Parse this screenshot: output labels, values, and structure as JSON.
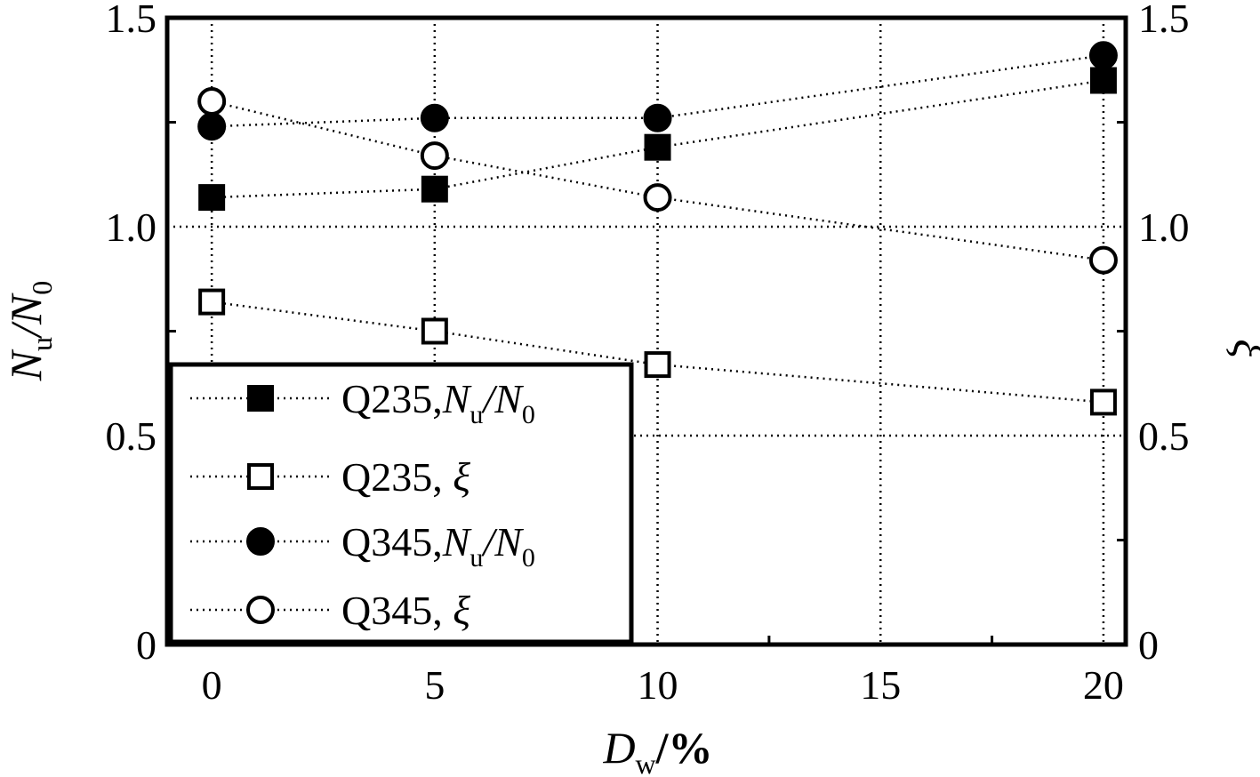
{
  "chart_data": {
    "type": "scatter",
    "x": [
      0,
      5,
      10,
      20
    ],
    "xlim": [
      -1,
      20.5
    ],
    "ylim": [
      0,
      1.5
    ],
    "y2lim": [
      0,
      1.5
    ],
    "xticks": [
      "0",
      "5",
      "10",
      "15",
      "20"
    ],
    "xtick_values": [
      0,
      5,
      10,
      15,
      20
    ],
    "yticks": [
      "0",
      "0.5",
      "1.0",
      "1.5"
    ],
    "ytick_values": [
      0,
      0.5,
      1.0,
      1.5
    ],
    "y2ticks": [
      "0",
      "0.5",
      "1.0",
      "1.5"
    ],
    "xlabel": {
      "main": "D",
      "sub": "w",
      "suffix": "/%"
    },
    "ylabel": {
      "main": "N",
      "sub": "u",
      "mid": "/N",
      "sub2": "0"
    },
    "y2label": "ξ",
    "grid": true,
    "legend_position": "bottom-left",
    "series": [
      {
        "name": "Q235,Nu/N0",
        "legend": {
          "prefix": "Q235,",
          "main": "N",
          "sub": "u",
          "mid": "/N",
          "sub2": "0"
        },
        "marker": "square",
        "filled": true,
        "axis": "left",
        "values": [
          1.07,
          1.09,
          1.19,
          1.35
        ]
      },
      {
        "name": "Q235, ξ",
        "legend": {
          "prefix": "Q235, ",
          "main": "ξ"
        },
        "marker": "square",
        "filled": false,
        "axis": "right",
        "values": [
          0.82,
          0.75,
          0.67,
          0.58
        ]
      },
      {
        "name": "Q345,Nu/N0",
        "legend": {
          "prefix": "Q345,",
          "main": "N",
          "sub": "u",
          "mid": "/N",
          "sub2": "0"
        },
        "marker": "circle",
        "filled": true,
        "axis": "left",
        "values": [
          1.24,
          1.26,
          1.26,
          1.41
        ]
      },
      {
        "name": "Q345, ξ",
        "legend": {
          "prefix": "Q345, ",
          "main": "ξ"
        },
        "marker": "circle",
        "filled": false,
        "axis": "right",
        "values": [
          1.3,
          1.17,
          1.07,
          0.92
        ]
      }
    ]
  }
}
